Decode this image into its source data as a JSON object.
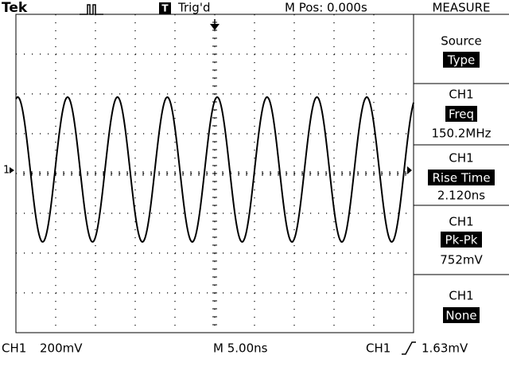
{
  "header": {
    "brand": "Tek",
    "trigger_status": "Trig'd",
    "position": "M Pos: 0.000s",
    "menu_title": "MEASURE"
  },
  "marker": "1",
  "menu": [
    {
      "label": "Source",
      "value": "Type"
    },
    {
      "channel": "CH1",
      "type": "Freq",
      "reading": "150.2MHz"
    },
    {
      "channel": "CH1",
      "type": "Rise Time",
      "reading": "2.120ns"
    },
    {
      "channel": "CH1",
      "type": "Pk-Pk",
      "reading": "752mV"
    },
    {
      "channel": "CH1",
      "type": "None"
    }
  ],
  "footer": {
    "channel": "CH1",
    "volts_div": "200mV",
    "timebase": "M 5.00ns",
    "trig_source": "CH1",
    "trig_level": "1.63mV"
  }
}
